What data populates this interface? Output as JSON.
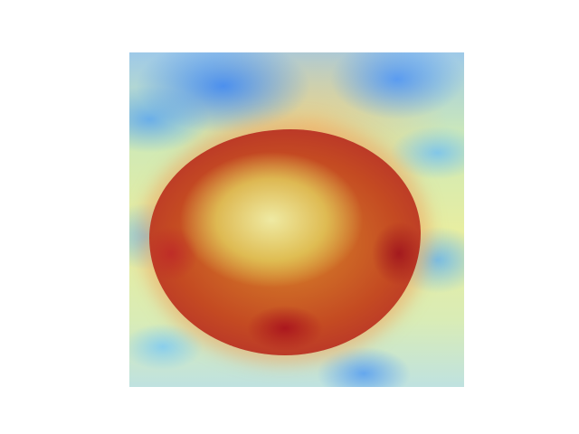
{
  "image": {
    "kind": "heatmap-overlay-photo",
    "colors": {
      "background": "#ffffff",
      "cool": "#5a9cf0",
      "warm": "#e9eea0",
      "hot": "#c44a22",
      "hotspot": "#b8322a"
    }
  }
}
